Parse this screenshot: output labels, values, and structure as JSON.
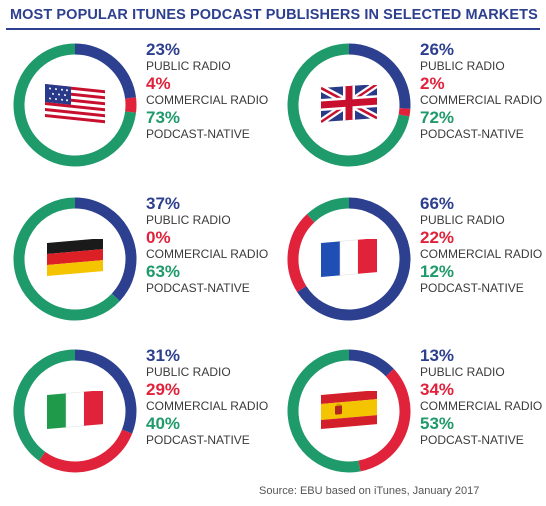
{
  "title": "MOST POPULAR ITUNES PODCAST PUBLISHERS IN SELECTED MARKETS",
  "source": "Source: EBU based on iTunes, January 2017",
  "colors": {
    "public_radio": "#2d3f8f",
    "commercial_radio": "#e0223a",
    "podcast_native": "#1f9a6a"
  },
  "chart_data": [
    {
      "type": "pie",
      "variant": "donut",
      "market_flag": "us-flag-icon",
      "labels": [
        "PUBLIC RADIO",
        "COMMERCIAL RADIO",
        "PODCAST-NATIVE"
      ],
      "values": [
        23,
        4,
        73
      ],
      "value_labels": [
        "23%",
        "4%",
        "73%"
      ],
      "colors": [
        "#2d3f8f",
        "#e0223a",
        "#1f9a6a"
      ]
    },
    {
      "type": "pie",
      "variant": "donut",
      "market_flag": "uk-flag-icon",
      "labels": [
        "PUBLIC RADIO",
        "COMMERCIAL RADIO",
        "PODCAST-NATIVE"
      ],
      "values": [
        26,
        2,
        72
      ],
      "value_labels": [
        "26%",
        "2%",
        "72%"
      ],
      "colors": [
        "#2d3f8f",
        "#e0223a",
        "#1f9a6a"
      ]
    },
    {
      "type": "pie",
      "variant": "donut",
      "market_flag": "germany-flag-icon",
      "labels": [
        "PUBLIC RADIO",
        "COMMERCIAL RADIO",
        "PODCAST-NATIVE"
      ],
      "values": [
        37,
        0,
        63
      ],
      "value_labels": [
        "37%",
        "0%",
        "63%"
      ],
      "colors": [
        "#2d3f8f",
        "#e0223a",
        "#1f9a6a"
      ]
    },
    {
      "type": "pie",
      "variant": "donut",
      "market_flag": "france-flag-icon",
      "labels": [
        "PUBLIC RADIO",
        "COMMERCIAL RADIO",
        "PODCAST-NATIVE"
      ],
      "values": [
        66,
        22,
        12
      ],
      "value_labels": [
        "66%",
        "22%",
        "12%"
      ],
      "colors": [
        "#2d3f8f",
        "#e0223a",
        "#1f9a6a"
      ]
    },
    {
      "type": "pie",
      "variant": "donut",
      "market_flag": "italy-flag-icon",
      "labels": [
        "PUBLIC RADIO",
        "COMMERCIAL RADIO",
        "PODCAST-NATIVE"
      ],
      "values": [
        31,
        29,
        40
      ],
      "value_labels": [
        "31%",
        "29%",
        "40%"
      ],
      "colors": [
        "#2d3f8f",
        "#e0223a",
        "#1f9a6a"
      ]
    },
    {
      "type": "pie",
      "variant": "donut",
      "market_flag": "spain-flag-icon",
      "labels": [
        "PUBLIC RADIO",
        "COMMERCIAL RADIO",
        "PODCAST-NATIVE"
      ],
      "values": [
        13,
        34,
        53
      ],
      "value_labels": [
        "13%",
        "34%",
        "53%"
      ],
      "colors": [
        "#2d3f8f",
        "#e0223a",
        "#1f9a6a"
      ]
    }
  ]
}
